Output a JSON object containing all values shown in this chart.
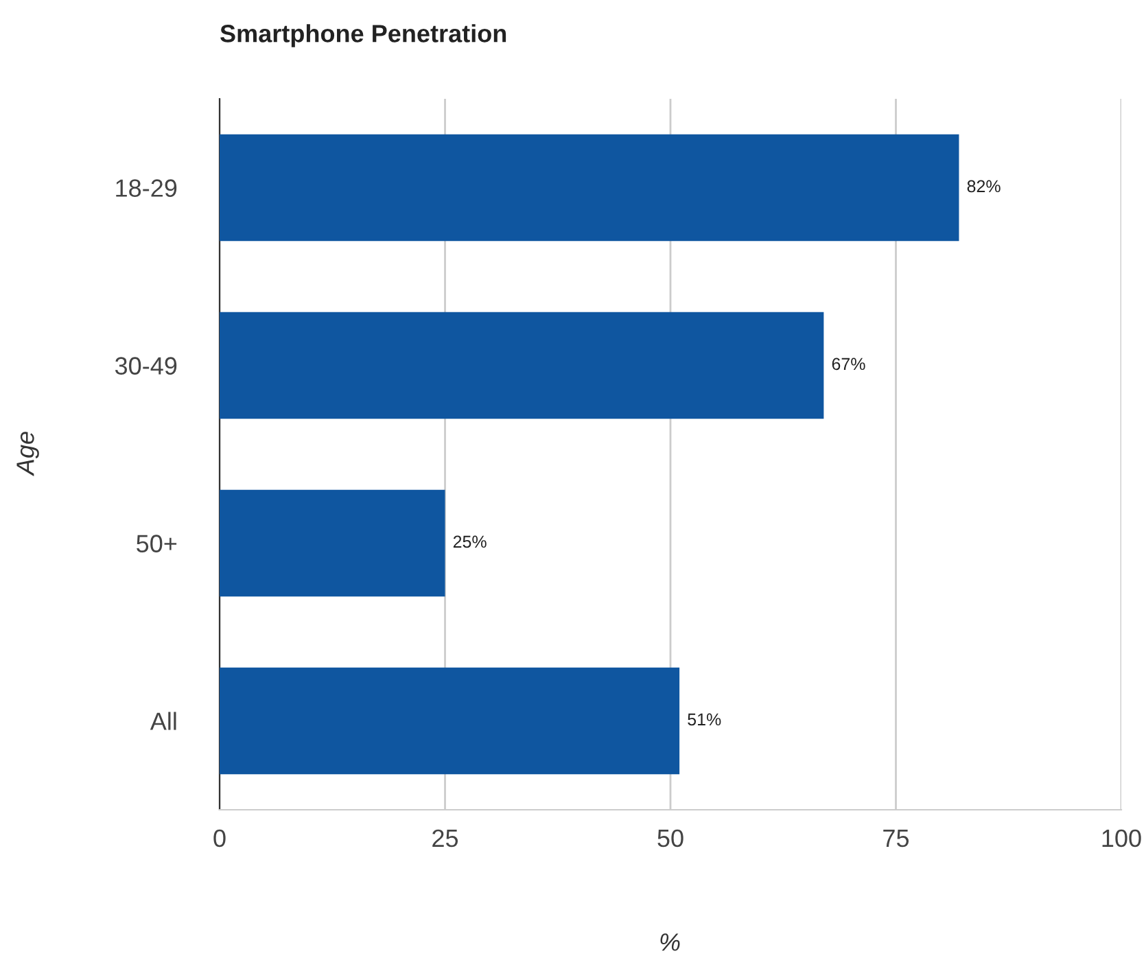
{
  "chart_data": {
    "type": "bar",
    "orientation": "horizontal",
    "title": "Smartphone Penetration",
    "xlabel": "%",
    "ylabel": "Age",
    "categories": [
      "18-29",
      "30-49",
      "50+",
      "All"
    ],
    "values": [
      82,
      67,
      25,
      51
    ],
    "value_labels": [
      "82%",
      "67%",
      "25%",
      "51%"
    ],
    "color": "#0f56a0",
    "xlim": [
      0,
      100
    ],
    "xticks": [
      0,
      25,
      50,
      75,
      100
    ],
    "grid": "x",
    "legend": false
  }
}
